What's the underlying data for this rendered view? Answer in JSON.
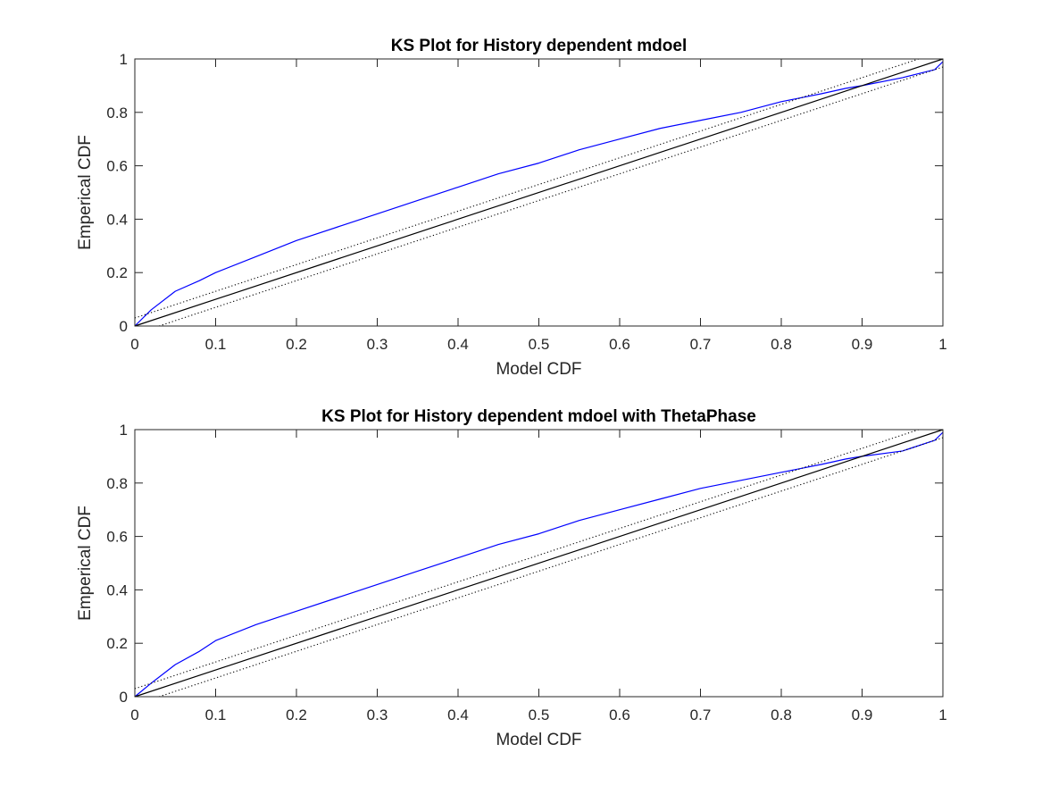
{
  "figure": {
    "background": "#ffffff"
  },
  "chart_data": [
    {
      "type": "line",
      "title": "KS Plot for History dependent mdoel",
      "xlabel": "Model CDF",
      "ylabel": "Emperical CDF",
      "xlim": [
        0,
        1
      ],
      "ylim": [
        0,
        1
      ],
      "xticks": [
        "0",
        "0.1",
        "0.2",
        "0.3",
        "0.4",
        "0.5",
        "0.6",
        "0.7",
        "0.8",
        "0.9",
        "1"
      ],
      "yticks": [
        "0",
        "0.2",
        "0.4",
        "0.6",
        "0.8",
        "1"
      ],
      "grid": false,
      "legend": "none",
      "series": [
        {
          "color": "#0000ff",
          "style": "solid",
          "x": [
            0,
            0.02,
            0.05,
            0.08,
            0.1,
            0.15,
            0.2,
            0.25,
            0.3,
            0.35,
            0.4,
            0.45,
            0.5,
            0.55,
            0.6,
            0.65,
            0.7,
            0.75,
            0.8,
            0.85,
            0.88,
            0.9,
            0.95,
            0.99,
            1
          ],
          "y": [
            0,
            0.06,
            0.13,
            0.17,
            0.2,
            0.26,
            0.32,
            0.37,
            0.42,
            0.47,
            0.52,
            0.57,
            0.61,
            0.66,
            0.7,
            0.74,
            0.77,
            0.8,
            0.84,
            0.87,
            0.89,
            0.9,
            0.93,
            0.96,
            0.99
          ]
        },
        {
          "color": "#000000",
          "style": "solid",
          "x": [
            0,
            1
          ],
          "y": [
            0,
            1
          ]
        },
        {
          "color": "#000000",
          "style": "dotted",
          "x": [
            0,
            0.97
          ],
          "y": [
            0.03,
            1
          ]
        },
        {
          "color": "#000000",
          "style": "dotted",
          "x": [
            0.03,
            1
          ],
          "y": [
            0,
            0.97
          ]
        }
      ]
    },
    {
      "type": "line",
      "title": "KS Plot for History dependent mdoel with ThetaPhase",
      "xlabel": "Model CDF",
      "ylabel": "Emperical CDF",
      "xlim": [
        0,
        1
      ],
      "ylim": [
        0,
        1
      ],
      "xticks": [
        "0",
        "0.1",
        "0.2",
        "0.3",
        "0.4",
        "0.5",
        "0.6",
        "0.7",
        "0.8",
        "0.9",
        "1"
      ],
      "yticks": [
        "0",
        "0.2",
        "0.4",
        "0.6",
        "0.8",
        "1"
      ],
      "grid": false,
      "legend": "none",
      "series": [
        {
          "color": "#0000ff",
          "style": "solid",
          "x": [
            0,
            0.02,
            0.05,
            0.08,
            0.1,
            0.15,
            0.2,
            0.25,
            0.3,
            0.35,
            0.4,
            0.45,
            0.5,
            0.55,
            0.6,
            0.65,
            0.7,
            0.75,
            0.8,
            0.85,
            0.88,
            0.9,
            0.95,
            0.99,
            1
          ],
          "y": [
            0,
            0.05,
            0.12,
            0.17,
            0.21,
            0.27,
            0.32,
            0.37,
            0.42,
            0.47,
            0.52,
            0.57,
            0.61,
            0.66,
            0.7,
            0.74,
            0.78,
            0.81,
            0.84,
            0.87,
            0.89,
            0.9,
            0.92,
            0.96,
            0.99
          ]
        },
        {
          "color": "#000000",
          "style": "solid",
          "x": [
            0,
            1
          ],
          "y": [
            0,
            1
          ]
        },
        {
          "color": "#000000",
          "style": "dotted",
          "x": [
            0,
            0.97
          ],
          "y": [
            0.03,
            1
          ]
        },
        {
          "color": "#000000",
          "style": "dotted",
          "x": [
            0.03,
            1
          ],
          "y": [
            0,
            0.97
          ]
        }
      ]
    }
  ]
}
